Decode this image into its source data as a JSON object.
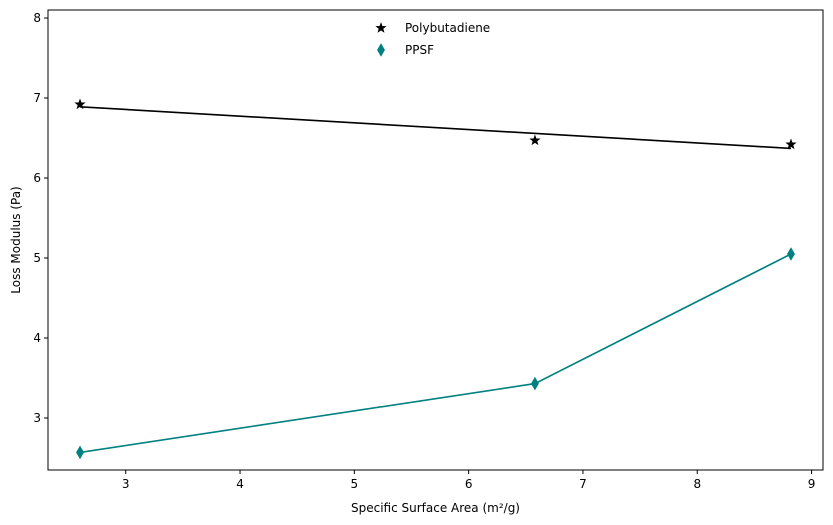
{
  "chart_data": {
    "type": "scatter",
    "title": "",
    "xlabel": "Specific Surface Area (m²/g)",
    "ylabel": "Loss Modulus (Pa)",
    "xlim": [
      2.32,
      9.1
    ],
    "ylim": [
      2.35,
      8.1
    ],
    "xticks": [
      3,
      4,
      5,
      6,
      7,
      8,
      9
    ],
    "yticks": [
      3,
      4,
      5,
      6,
      7,
      8
    ],
    "grid": false,
    "legend_position": "top-center",
    "series": [
      {
        "name": "Polybutadiene",
        "marker": "star",
        "color": "#000000",
        "points": [
          {
            "x": 2.6,
            "y": 6.92
          },
          {
            "x": 6.58,
            "y": 6.47
          },
          {
            "x": 8.82,
            "y": 6.42
          }
        ],
        "fit_line": {
          "kind": "linear",
          "x": [
            2.6,
            8.82
          ],
          "y": [
            6.89,
            6.37
          ]
        }
      },
      {
        "name": "PPSF",
        "marker": "thin_diamond",
        "color": "#008080",
        "points": [
          {
            "x": 2.6,
            "y": 2.57
          },
          {
            "x": 6.58,
            "y": 3.43
          },
          {
            "x": 8.82,
            "y": 5.05
          }
        ],
        "connect_points": true
      }
    ]
  }
}
